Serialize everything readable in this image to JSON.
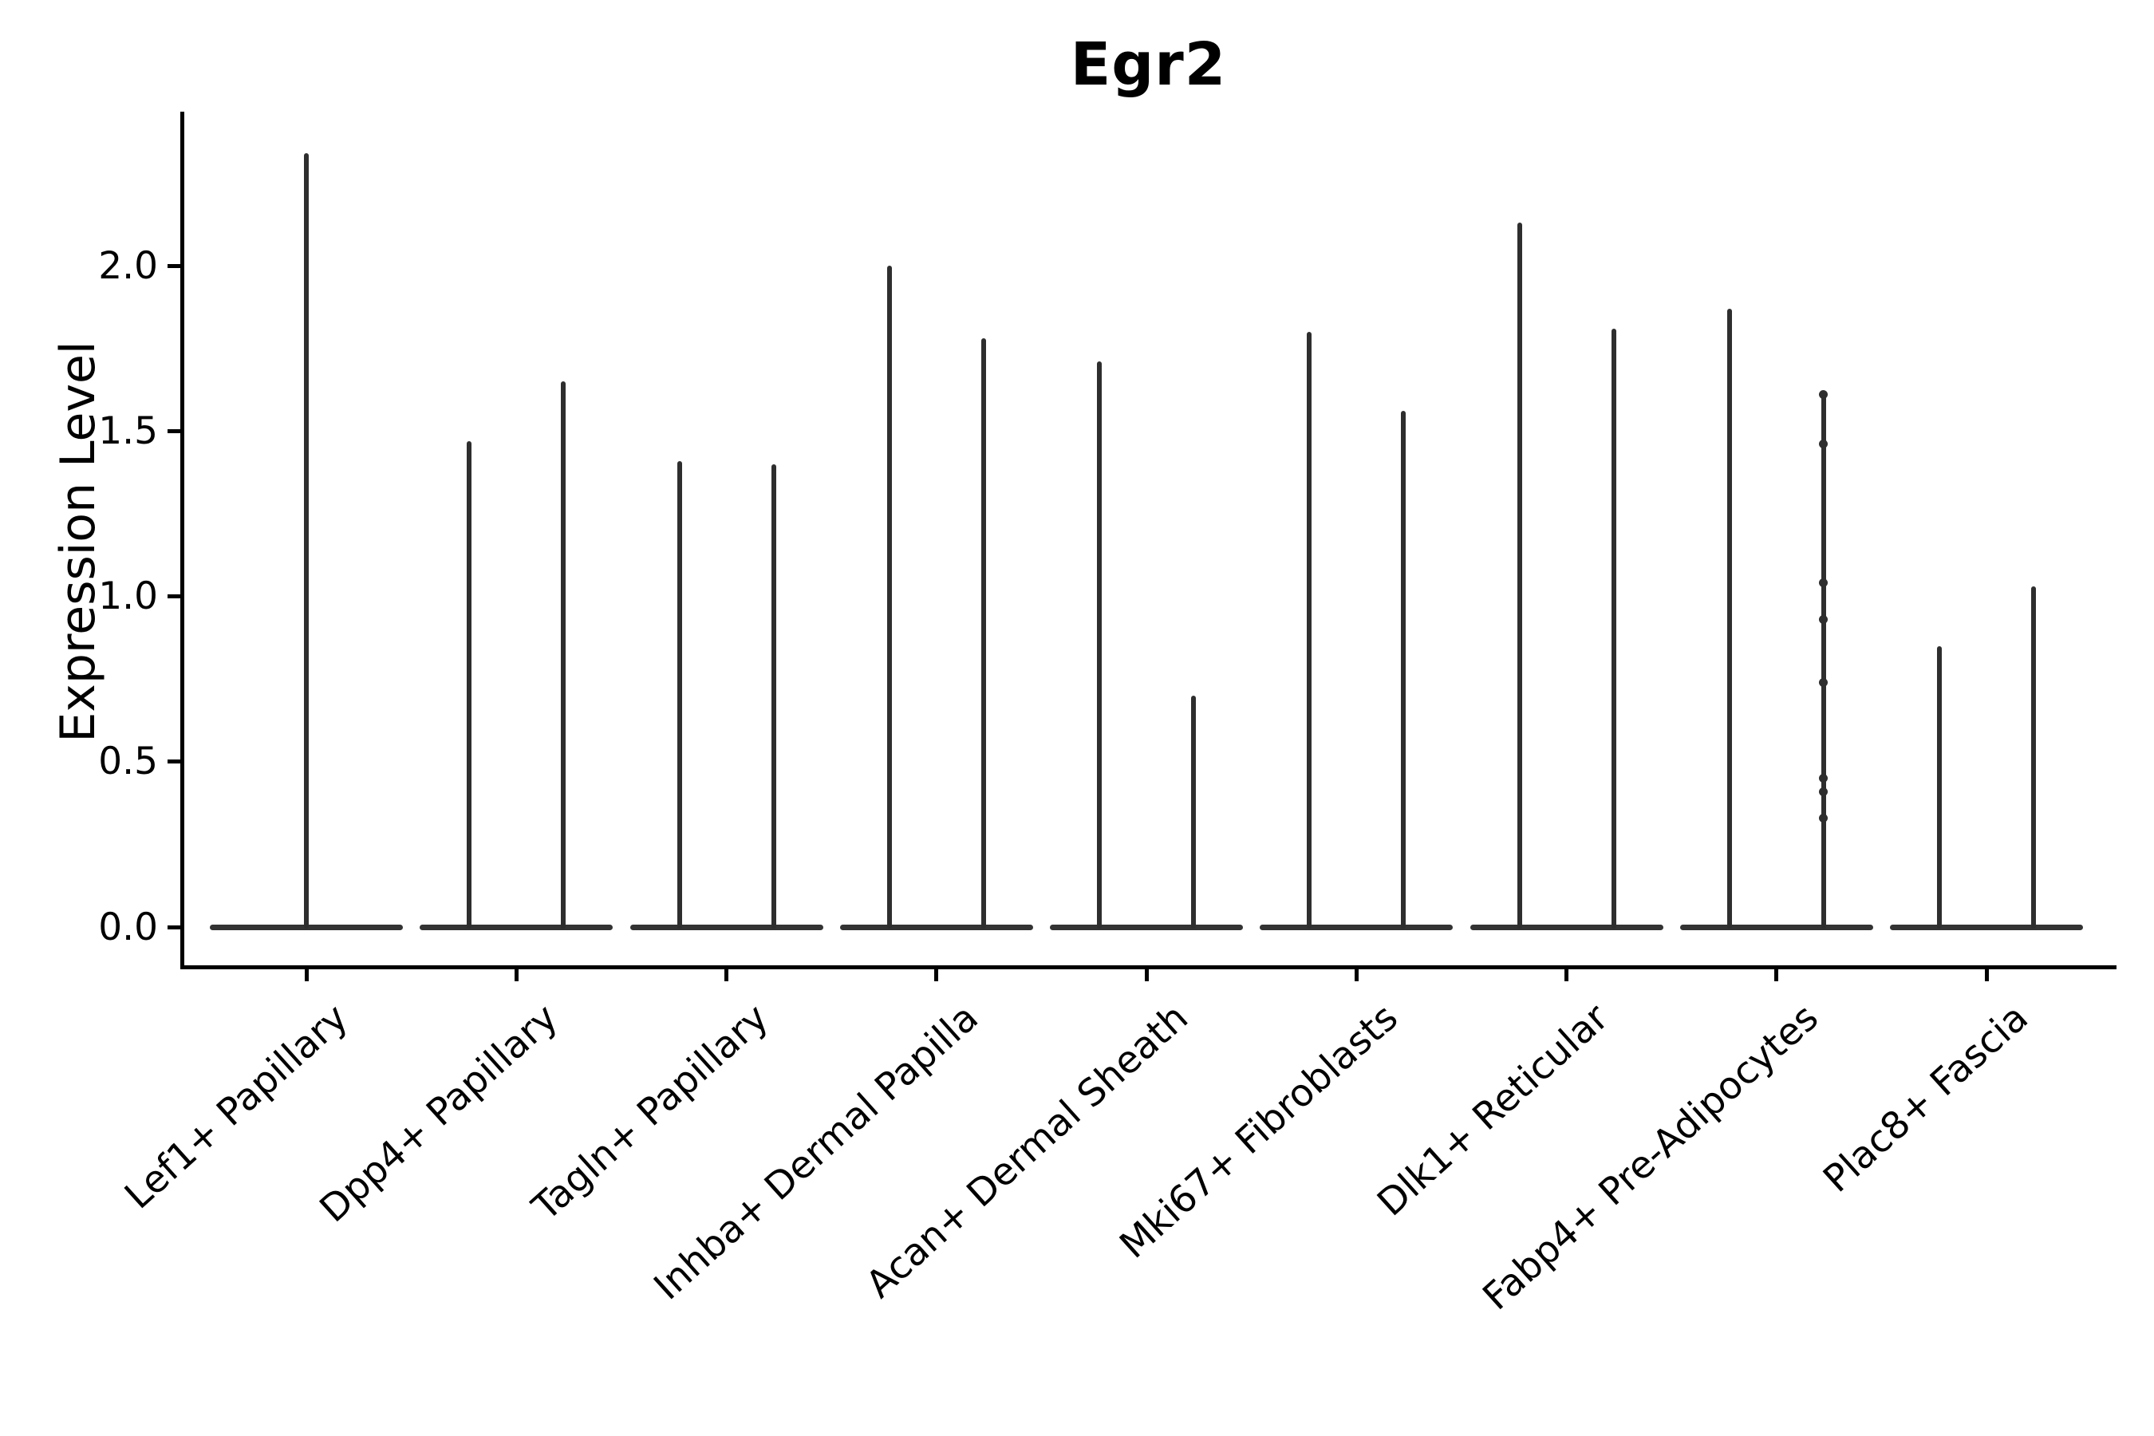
{
  "title": "Egr2",
  "y_axis": {
    "label": "Expression Level",
    "tick_labels": [
      "0.0",
      "0.5",
      "1.0",
      "1.5",
      "2.0"
    ],
    "tick_values": [
      0.0,
      0.5,
      1.0,
      1.5,
      2.0
    ]
  },
  "chart_data": {
    "type": "violin",
    "title": "Egr2",
    "xlabel": "",
    "ylabel": "Expression Level",
    "ylim": [
      -0.12,
      2.47
    ],
    "grid": false,
    "legend": "none",
    "categories": [
      "Lef1+ Papillary",
      "Dpp4+ Papillary",
      "Tagln+ Papillary",
      "Inhba+ Dermal Papilla",
      "Acan+ Dermal Sheath",
      "Mki67+ Fibroblasts",
      "Dlk1+ Reticular",
      "Fabp4+ Pre-Adipocytes",
      "Plac8+ Fascia"
    ],
    "description": "Violin plot of Egr2 expression; each category shows narrow spike-like violins rising from a wide flat base at 0 (most cells at zero expression). Values below are the maximum expression reached by each violin spike.",
    "violins": [
      {
        "category": "Lef1+ Papillary",
        "spike_maxima": [
          2.34
        ],
        "points": []
      },
      {
        "category": "Dpp4+ Papillary",
        "spike_maxima": [
          1.47,
          1.65
        ],
        "points": []
      },
      {
        "category": "Tagln+ Papillary",
        "spike_maxima": [
          1.41,
          1.4
        ],
        "points": []
      },
      {
        "category": "Inhba+ Dermal Papilla",
        "spike_maxima": [
          2.0,
          1.78
        ],
        "points": []
      },
      {
        "category": "Acan+ Dermal Sheath",
        "spike_maxima": [
          1.71,
          0.7
        ],
        "points": []
      },
      {
        "category": "Mki67+ Fibroblasts",
        "spike_maxima": [
          1.8,
          1.56
        ],
        "points": []
      },
      {
        "category": "Dlk1+ Reticular",
        "spike_maxima": [
          2.13,
          1.81
        ],
        "points": []
      },
      {
        "category": "Fabp4+ Pre-Adipocytes",
        "spike_maxima": [
          1.87,
          1.61
        ],
        "points": [
          1.61,
          1.46,
          1.04,
          0.93,
          0.74,
          0.45,
          0.41,
          0.33
        ]
      },
      {
        "category": "Plac8+ Fascia",
        "spike_maxima": [
          0.85,
          1.03
        ],
        "points": []
      }
    ],
    "baseline_value": 0.0
  }
}
